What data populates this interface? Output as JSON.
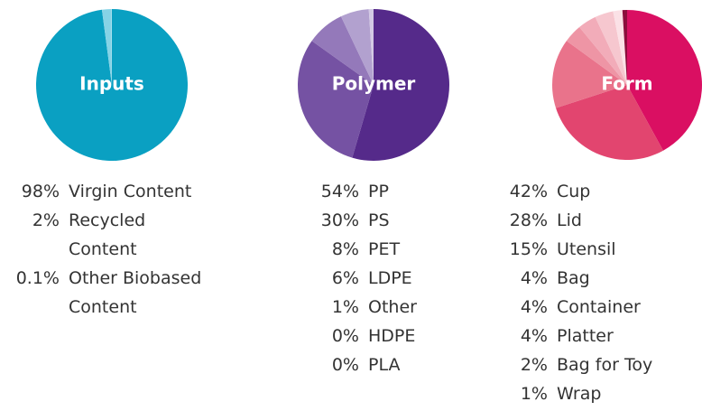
{
  "chart_data": [
    {
      "type": "pie",
      "title": "Inputs",
      "categories": [
        "Virgin Content",
        "Recycled Content",
        "Other Biobased Content"
      ],
      "values": [
        98,
        2,
        0.1
      ],
      "value_labels": [
        "98%",
        "2%",
        "0.1%"
      ],
      "colors": [
        "#0aa0c2",
        "#86d3e6",
        "#c5eaf3"
      ]
    },
    {
      "type": "pie",
      "title": "Polymer",
      "categories": [
        "PP",
        "PS",
        "PET",
        "LDPE",
        "Other",
        "HDPE",
        "PLA"
      ],
      "values": [
        54,
        30,
        8,
        6,
        1,
        0,
        0
      ],
      "value_labels": [
        "54%",
        "30%",
        "8%",
        "6%",
        "1%",
        "0%",
        "0%"
      ],
      "colors": [
        "#552a8a",
        "#7552a3",
        "#9479ba",
        "#b2a1cf",
        "#d3c9e4",
        "#e6e0f0",
        "#f0ecf6"
      ]
    },
    {
      "type": "pie",
      "title": "Form",
      "categories": [
        "Cup",
        "Lid",
        "Utensil",
        "Bag",
        "Container",
        "Platter",
        "Bag for Toy",
        "Wrap"
      ],
      "values": [
        42,
        28,
        15,
        4,
        4,
        4,
        2,
        1
      ],
      "value_labels": [
        "42%",
        "28%",
        "15%",
        "4%",
        "4%",
        "4%",
        "2%",
        "1%"
      ],
      "colors": [
        "#da0f62",
        "#e2456f",
        "#e9738b",
        "#ee95a5",
        "#f2acb9",
        "#f6c7cf",
        "#fbe1e6",
        "#8c0e3c"
      ]
    }
  ]
}
